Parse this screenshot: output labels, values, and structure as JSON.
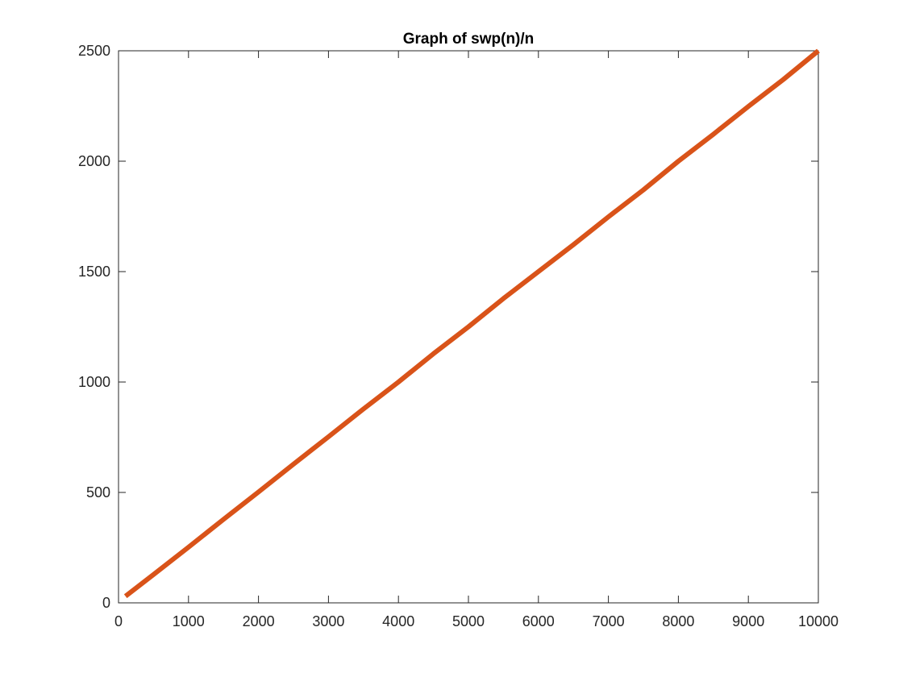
{
  "chart_data": {
    "type": "line",
    "title": "Graph of swp(n)/n",
    "xlabel": "",
    "ylabel": "",
    "xlim": [
      0,
      10000
    ],
    "ylim": [
      0,
      2500
    ],
    "xticks": [
      0,
      1000,
      2000,
      3000,
      4000,
      5000,
      6000,
      7000,
      8000,
      9000,
      10000
    ],
    "yticks": [
      0,
      500,
      1000,
      1500,
      2000,
      2500
    ],
    "grid": false,
    "legend": "none",
    "series": [
      {
        "color": "#D95319",
        "x": [
          100,
          500,
          1000,
          1500,
          2000,
          2500,
          3000,
          3500,
          4000,
          4500,
          5000,
          5500,
          6000,
          6500,
          7000,
          7500,
          8000,
          8500,
          9000,
          9500,
          10000
        ],
        "y": [
          30,
          128,
          252,
          378,
          502,
          628,
          752,
          878,
          1000,
          1128,
          1250,
          1378,
          1500,
          1622,
          1748,
          1870,
          2000,
          2122,
          2248,
          2370,
          2500
        ]
      }
    ]
  }
}
